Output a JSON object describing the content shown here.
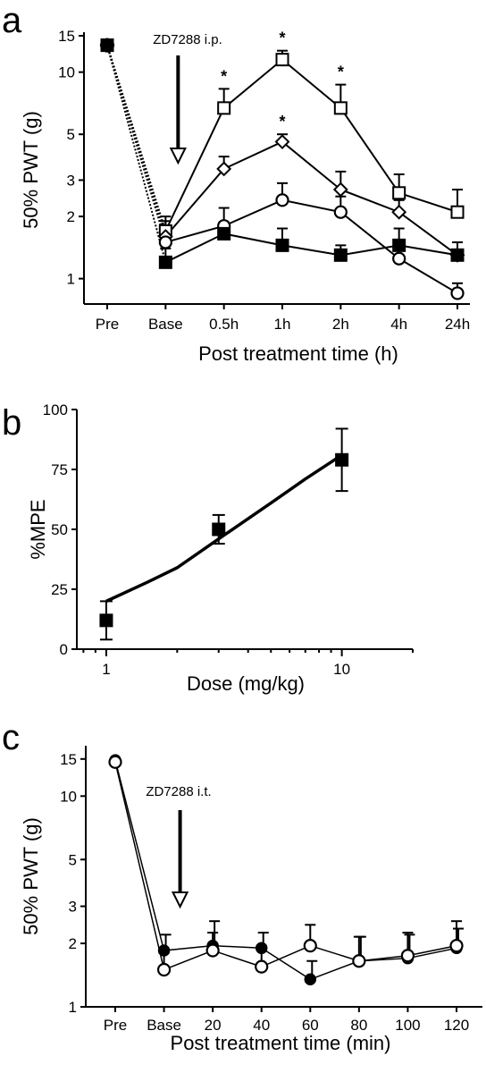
{
  "chart_data": [
    {
      "panel": "a",
      "type": "line",
      "ylabel": "50% PWT (g)",
      "xlabel": "Post treatment time (h)",
      "yscale": "log",
      "ylim": [
        0.8,
        15
      ],
      "yticks": [
        {
          "value": 15,
          "label": "15"
        },
        {
          "value": 10,
          "label": "10"
        },
        {
          "value": 5,
          "label": "5"
        },
        {
          "value": 3,
          "label": "3"
        },
        {
          "value": 2,
          "label": "2"
        },
        {
          "value": 1,
          "label": "1"
        }
      ],
      "categories": [
        "Pre",
        "Base",
        "0.5h",
        "1h",
        "2h",
        "4h",
        "24h"
      ],
      "annotation": "ZD7288 i.p.",
      "arrow_category": "Base",
      "grid": false,
      "series": [
        {
          "marker": "open-square",
          "values": [
            13.5,
            1.7,
            6.7,
            11.5,
            6.7,
            2.6,
            2.1
          ],
          "errors": [
            1.0,
            0.3,
            1.6,
            1.2,
            2.0,
            0.6,
            0.6
          ]
        },
        {
          "marker": "open-diamond",
          "values": [
            13.5,
            1.6,
            3.4,
            4.6,
            2.7,
            2.1,
            1.3
          ],
          "errors": [
            1.0,
            0.3,
            0.5,
            0.4,
            0.6,
            0.3,
            0.2
          ]
        },
        {
          "marker": "open-circle",
          "values": [
            13.5,
            1.5,
            1.8,
            2.4,
            2.1,
            1.25,
            0.85
          ],
          "errors": [
            1.0,
            0.3,
            0.4,
            0.5,
            0.4,
            0.2,
            0.1
          ]
        },
        {
          "marker": "filled-square",
          "values": [
            13.5,
            1.2,
            1.65,
            1.45,
            1.3,
            1.45,
            1.3
          ],
          "errors": [
            1.0,
            0.2,
            0.2,
            0.3,
            0.15,
            0.3,
            0.2
          ]
        }
      ],
      "significance": [
        {
          "category": "0.5h",
          "y": 6.7,
          "error": 1.6,
          "label": "*"
        },
        {
          "category": "1h",
          "y": 11.5,
          "error": 1.2,
          "label": "*"
        },
        {
          "category": "2h",
          "y": 6.7,
          "error": 2.0,
          "label": "*"
        },
        {
          "category": "1h",
          "y": 4.6,
          "error": 0.4,
          "label": "*"
        }
      ]
    },
    {
      "panel": "b",
      "type": "scatter",
      "ylabel": "%MPE",
      "xlabel": "Dose (mg/kg)",
      "xscale": "log",
      "xlim": [
        0.75,
        20
      ],
      "ylim": [
        0,
        100
      ],
      "xticks": [
        {
          "value": 1,
          "label": "1"
        },
        {
          "value": 10,
          "label": "10"
        }
      ],
      "yticks": [
        {
          "value": 0,
          "label": "0"
        },
        {
          "value": 25,
          "label": "25"
        },
        {
          "value": 50,
          "label": "50"
        },
        {
          "value": 75,
          "label": "75"
        },
        {
          "value": 100,
          "label": "100"
        }
      ],
      "grid": false,
      "points": [
        {
          "x": 1,
          "y": 12,
          "error": 8
        },
        {
          "x": 3,
          "y": 50,
          "error": 6
        },
        {
          "x": 10,
          "y": 79,
          "error": 13
        }
      ],
      "fit": [
        {
          "x": 1,
          "y": 20
        },
        {
          "x": 1.5,
          "y": 28
        },
        {
          "x": 2,
          "y": 34
        },
        {
          "x": 3,
          "y": 46
        },
        {
          "x": 5,
          "y": 61
        },
        {
          "x": 7,
          "y": 71
        },
        {
          "x": 10,
          "y": 81
        }
      ]
    },
    {
      "panel": "c",
      "type": "line",
      "ylabel": "50% PWT (g)",
      "xlabel": "Post treatment time (min)",
      "yscale": "log",
      "ylim": [
        1,
        17
      ],
      "yticks": [
        {
          "value": 15,
          "label": "15"
        },
        {
          "value": 10,
          "label": "10"
        },
        {
          "value": 5,
          "label": "5"
        },
        {
          "value": 3,
          "label": "3"
        },
        {
          "value": 2,
          "label": "2"
        },
        {
          "value": 1,
          "label": "1"
        }
      ],
      "categories": [
        "Pre",
        "Base",
        "20",
        "40",
        "60",
        "80",
        "100",
        "120"
      ],
      "annotation": "ZD7288 i.t.",
      "arrow_category": "Base",
      "grid": false,
      "series": [
        {
          "marker": "filled-circle",
          "values": [
            14.8,
            1.85,
            1.95,
            1.9,
            1.35,
            1.65,
            1.7,
            1.9
          ],
          "errors": [
            0.8,
            0.35,
            0.6,
            0.35,
            0.3,
            0.5,
            0.5,
            0.45
          ]
        },
        {
          "marker": "open-circle",
          "values": [
            14.5,
            1.5,
            1.85,
            1.55,
            1.95,
            1.65,
            1.75,
            1.95
          ],
          "errors": [
            0.8,
            0.3,
            0.4,
            0.4,
            0.5,
            0.5,
            0.5,
            0.6
          ]
        }
      ]
    }
  ],
  "panels": {
    "a": {
      "letter": "a"
    },
    "b": {
      "letter": "b"
    },
    "c": {
      "letter": "c"
    }
  }
}
